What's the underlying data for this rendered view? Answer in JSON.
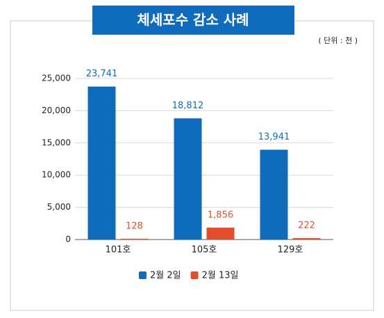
{
  "chart_data": {
    "type": "bar",
    "title": "체세포수 감소 사례",
    "subtitle": "( 단위 : 천 )",
    "categories": [
      "101호",
      "105호",
      "129호"
    ],
    "series": [
      {
        "name": "2월 2일",
        "color": "#0f6cbd",
        "values": [
          23741,
          18812,
          13941
        ],
        "value_labels": [
          "23,741",
          "18,812",
          "13,941"
        ]
      },
      {
        "name": "2월 13일",
        "color": "#e04e2a",
        "values": [
          128,
          1856,
          222
        ],
        "value_labels": [
          "128",
          "1,856",
          "222"
        ]
      }
    ],
    "ylim": [
      0,
      25000
    ],
    "yticks": [
      0,
      {
        "value": 5000,
        "label": "5,000"
      },
      {
        "value": 10000,
        "label": "10,000"
      },
      {
        "value": 15000,
        "label": "15,000"
      },
      {
        "value": 20000,
        "label": "20,000"
      },
      {
        "value": 25000,
        "label": "25,000"
      }
    ],
    "grid": true
  }
}
